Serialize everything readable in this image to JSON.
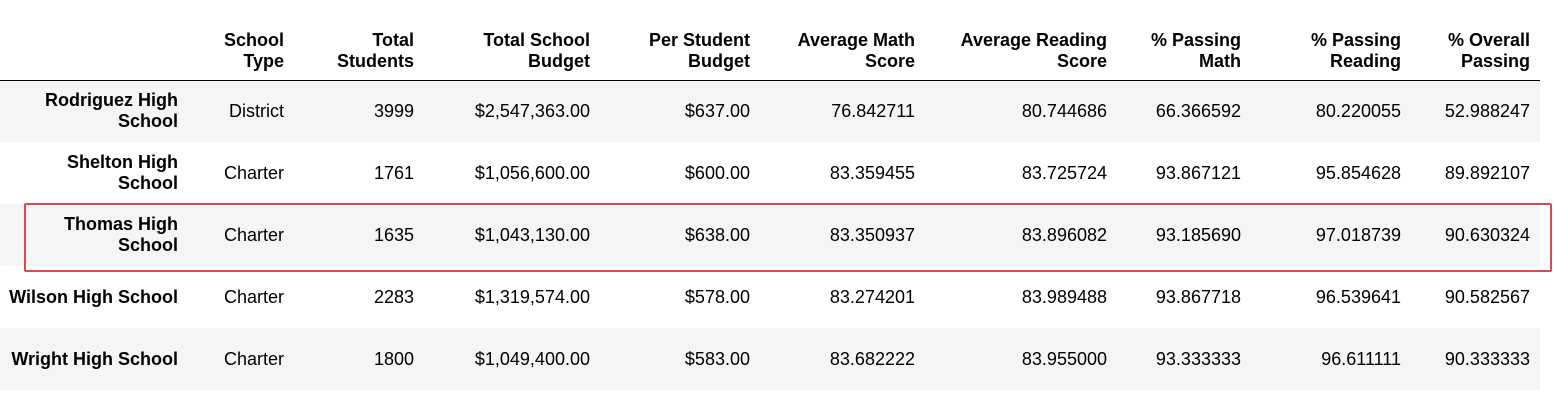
{
  "table": {
    "headers": [
      "",
      "School Type",
      "Total Students",
      "Total School Budget",
      "Per Student Budget",
      "Average Math Score",
      "Average Reading Score",
      "% Passing Math",
      "% Passing Reading",
      "% Overall Passing"
    ],
    "rows": [
      {
        "name": "Rodriguez High School",
        "cells": [
          "District",
          "3999",
          "$2,547,363.00",
          "$637.00",
          "76.842711",
          "80.744686",
          "66.366592",
          "80.220055",
          "52.988247"
        ]
      },
      {
        "name": "Shelton High School",
        "cells": [
          "Charter",
          "1761",
          "$1,056,600.00",
          "$600.00",
          "83.359455",
          "83.725724",
          "93.867121",
          "95.854628",
          "89.892107"
        ]
      },
      {
        "name": "Thomas High School",
        "cells": [
          "Charter",
          "1635",
          "$1,043,130.00",
          "$638.00",
          "83.350937",
          "83.896082",
          "93.185690",
          "97.018739",
          "90.630324"
        ]
      },
      {
        "name": "Wilson High School",
        "cells": [
          "Charter",
          "2283",
          "$1,319,574.00",
          "$578.00",
          "83.274201",
          "83.989488",
          "93.867718",
          "96.539641",
          "90.582567"
        ]
      },
      {
        "name": "Wright High School",
        "cells": [
          "Charter",
          "1800",
          "$1,049,400.00",
          "$583.00",
          "83.682222",
          "83.955000",
          "93.333333",
          "96.611111",
          "90.333333"
        ]
      }
    ],
    "highlighted_row": "Thomas High School"
  },
  "colors": {
    "highlight_border": "#e0484f",
    "shaded_row": "#f5f5f5",
    "text": "#000000"
  }
}
